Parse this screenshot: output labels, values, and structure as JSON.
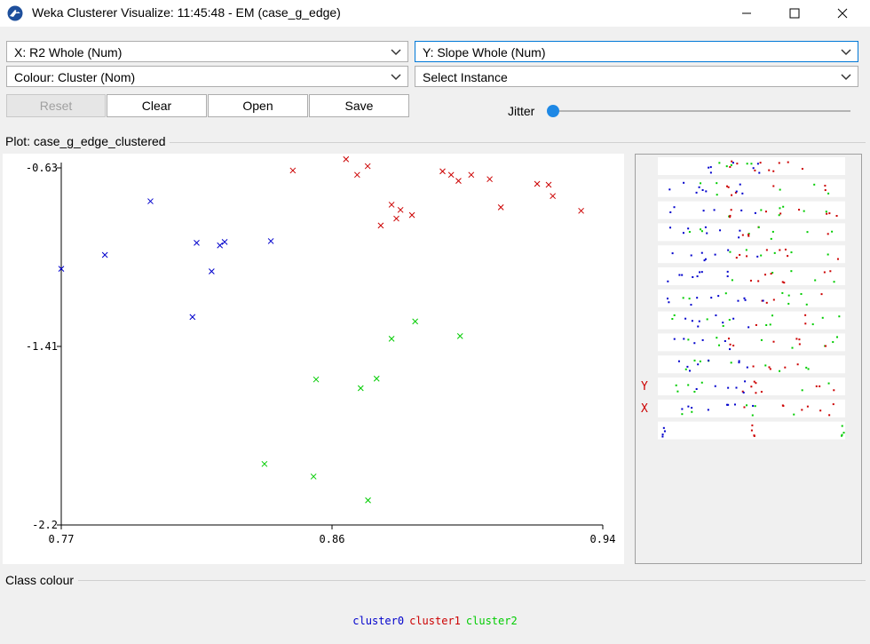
{
  "window": {
    "title": "Weka Clusterer Visualize: 11:45:48 - EM (case_g_edge)",
    "minimize": "—",
    "maximize": "☐",
    "close": "✕"
  },
  "controls": {
    "x_axis": "X: R2 Whole (Num)",
    "y_axis": "Y: Slope Whole (Num)",
    "colour": "Colour: Cluster (Nom)",
    "instance": "Select Instance",
    "reset": "Reset",
    "clear": "Clear",
    "open": "Open",
    "save": "Save",
    "jitter": "Jitter",
    "jitter_value": 0
  },
  "plot": {
    "label": "Plot: case_g_edge_clustered"
  },
  "chart_data": {
    "type": "scatter",
    "xlim": [
      0.77,
      0.94
    ],
    "ylim": [
      -2.2,
      -0.63
    ],
    "x_ticks": [
      "0.77",
      "0.86",
      "0.94"
    ],
    "y_ticks": [
      "-0.63",
      "-1.41",
      "-2.2"
    ],
    "marker": "x",
    "series": [
      {
        "name": "cluster0",
        "color": "#0000cc",
        "points": [
          [
            0.77,
            -1.0737
          ],
          [
            0.7837,
            -1.0128
          ],
          [
            0.798,
            -0.7767
          ],
          [
            0.8112,
            -1.2856
          ],
          [
            0.8125,
            -0.9595
          ],
          [
            0.8172,
            -1.0851
          ],
          [
            0.8198,
            -0.9709
          ],
          [
            0.8213,
            -0.9557
          ],
          [
            0.8358,
            -0.9519
          ]
        ]
      },
      {
        "name": "cluster1",
        "color": "#cc0000",
        "points": [
          [
            0.8427,
            -0.6414
          ],
          [
            0.8594,
            -0.5919
          ],
          [
            0.8629,
            -0.6605
          ],
          [
            0.8662,
            -0.6224
          ],
          [
            0.8703,
            -0.8833
          ],
          [
            0.8737,
            -0.7919
          ],
          [
            0.8752,
            -0.8529
          ],
          [
            0.8765,
            -0.8148
          ],
          [
            0.8801,
            -0.8376
          ],
          [
            0.8897,
            -0.6452
          ],
          [
            0.8924,
            -0.6605
          ],
          [
            0.8947,
            -0.6871
          ],
          [
            0.8987,
            -0.6605
          ],
          [
            0.9045,
            -0.6795
          ],
          [
            0.908,
            -0.8033
          ],
          [
            0.9194,
            -0.7004
          ],
          [
            0.923,
            -0.7042
          ],
          [
            0.9243,
            -0.7538
          ],
          [
            0.9332,
            -0.8186
          ]
        ]
      },
      {
        "name": "cluster2",
        "color": "#00cc00",
        "points": [
          [
            0.8338,
            -1.9317
          ],
          [
            0.8492,
            -1.9869
          ],
          [
            0.85,
            -1.5603
          ],
          [
            0.864,
            -1.5984
          ],
          [
            0.8663,
            -2.0916
          ],
          [
            0.869,
            -1.5565
          ],
          [
            0.8737,
            -1.3812
          ],
          [
            0.8811,
            -1.305
          ],
          [
            0.8952,
            -1.3697
          ]
        ]
      }
    ]
  },
  "matrix": {
    "row_count": 13,
    "y_marker": "Y",
    "x_marker": "X"
  },
  "legend": {
    "label": "Class colour",
    "items": [
      {
        "name": "cluster0",
        "color": "#0000cc"
      },
      {
        "name": "cluster1",
        "color": "#cc0000"
      },
      {
        "name": "cluster2",
        "color": "#00cc00"
      }
    ]
  }
}
